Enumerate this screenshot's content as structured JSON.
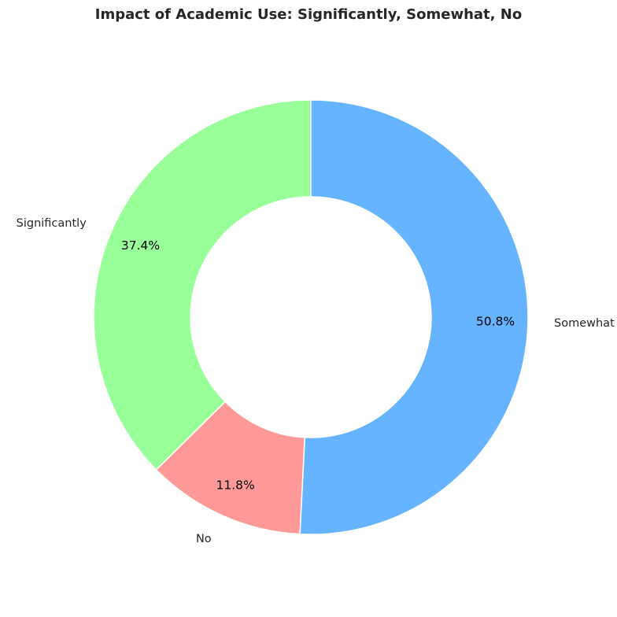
{
  "chart_data": {
    "type": "pie",
    "variant": "donut",
    "title": "Impact of Academic Use: Significantly, Somewhat, No",
    "categories": [
      "Significantly",
      "No",
      "Somewhat"
    ],
    "values": [
      37.4,
      11.8,
      50.8
    ],
    "value_labels": [
      "37.4%",
      "11.8%",
      "50.8%"
    ],
    "colors": [
      "#99ff99",
      "#ff9999",
      "#66b3ff"
    ],
    "start_angle_deg": 90,
    "direction": "clockwise-from-top-for-No",
    "legend": "none"
  }
}
